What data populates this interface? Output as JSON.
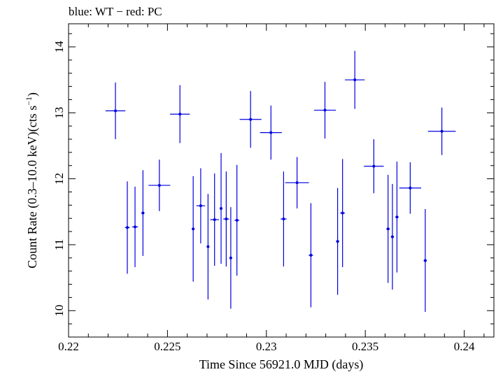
{
  "chart_data": {
    "type": "scatter",
    "title": "blue: WT − red: PC",
    "xlabel": "Time Since 56921.0 MJD (days)",
    "ylabel_main": "Count Rate (0.3–10.0 keV)(cts s",
    "ylabel_sup": "−1",
    "ylabel_end": ")",
    "xlim": [
      0.22,
      0.2415
    ],
    "ylim": [
      9.6,
      14.35
    ],
    "xticks": [
      {
        "value": 0.22,
        "label": "0.22"
      },
      {
        "value": 0.225,
        "label": "0.225"
      },
      {
        "value": 0.23,
        "label": "0.23"
      },
      {
        "value": 0.235,
        "label": "0.235"
      },
      {
        "value": 0.24,
        "label": "0.24"
      }
    ],
    "yticks": [
      {
        "value": 10,
        "label": "10"
      },
      {
        "value": 11,
        "label": "11"
      },
      {
        "value": 12,
        "label": "12"
      },
      {
        "value": 13,
        "label": "13"
      },
      {
        "value": 14,
        "label": "14"
      }
    ],
    "grid": false,
    "series": [
      {
        "color": "#0000e0",
        "points": [
          {
            "x": 0.22237,
            "y": 13.03,
            "xerr": 0.0005,
            "yerr": 0.43
          },
          {
            "x": 0.22297,
            "y": 11.26,
            "xerr": 0.00012,
            "yerr": 0.7
          },
          {
            "x": 0.22336,
            "y": 11.27,
            "xerr": 0.00015,
            "yerr": 0.61
          },
          {
            "x": 0.22376,
            "y": 11.48,
            "xerr": 8e-05,
            "yerr": 0.65
          },
          {
            "x": 0.22459,
            "y": 11.9,
            "xerr": 0.00055,
            "yerr": 0.39
          },
          {
            "x": 0.22563,
            "y": 12.98,
            "xerr": 0.0005,
            "yerr": 0.44
          },
          {
            "x": 0.2263,
            "y": 11.24,
            "xerr": 7e-05,
            "yerr": 0.8
          },
          {
            "x": 0.22668,
            "y": 11.59,
            "xerr": 0.00022,
            "yerr": 0.57
          },
          {
            "x": 0.22705,
            "y": 10.97,
            "xerr": 5e-05,
            "yerr": 0.8
          },
          {
            "x": 0.22738,
            "y": 11.38,
            "xerr": 0.00022,
            "yerr": 0.7
          },
          {
            "x": 0.22771,
            "y": 11.55,
            "xerr": 5e-05,
            "yerr": 0.84
          },
          {
            "x": 0.22797,
            "y": 11.39,
            "xerr": 0.00015,
            "yerr": 0.72
          },
          {
            "x": 0.2282,
            "y": 10.8,
            "xerr": 5e-05,
            "yerr": 0.77
          },
          {
            "x": 0.22851,
            "y": 11.37,
            "xerr": 0.00012,
            "yerr": 0.84
          },
          {
            "x": 0.2292,
            "y": 12.9,
            "xerr": 0.00055,
            "yerr": 0.43
          },
          {
            "x": 0.23023,
            "y": 12.7,
            "xerr": 0.00055,
            "yerr": 0.41
          },
          {
            "x": 0.23087,
            "y": 11.39,
            "xerr": 0.00015,
            "yerr": 0.72
          },
          {
            "x": 0.23155,
            "y": 11.94,
            "xerr": 0.0006,
            "yerr": 0.39
          },
          {
            "x": 0.23225,
            "y": 10.84,
            "xerr": 0.00011,
            "yerr": 0.79
          },
          {
            "x": 0.23296,
            "y": 13.04,
            "xerr": 0.00055,
            "yerr": 0.43
          },
          {
            "x": 0.2336,
            "y": 11.05,
            "xerr": 8e-05,
            "yerr": 0.81
          },
          {
            "x": 0.23385,
            "y": 11.48,
            "xerr": 0.00012,
            "yerr": 0.82
          },
          {
            "x": 0.23447,
            "y": 13.5,
            "xerr": 0.0005,
            "yerr": 0.44
          },
          {
            "x": 0.23543,
            "y": 12.19,
            "xerr": 0.0005,
            "yerr": 0.41
          },
          {
            "x": 0.23615,
            "y": 11.24,
            "xerr": 9e-05,
            "yerr": 0.82
          },
          {
            "x": 0.23637,
            "y": 11.12,
            "xerr": 8e-05,
            "yerr": 0.8
          },
          {
            "x": 0.2366,
            "y": 11.42,
            "xerr": 8e-05,
            "yerr": 0.84
          },
          {
            "x": 0.23727,
            "y": 11.86,
            "xerr": 0.00055,
            "yerr": 0.39
          },
          {
            "x": 0.23803,
            "y": 10.76,
            "xerr": 8e-05,
            "yerr": 0.78
          },
          {
            "x": 0.23887,
            "y": 12.72,
            "xerr": 0.0007,
            "yerr": 0.36
          }
        ]
      }
    ]
  }
}
